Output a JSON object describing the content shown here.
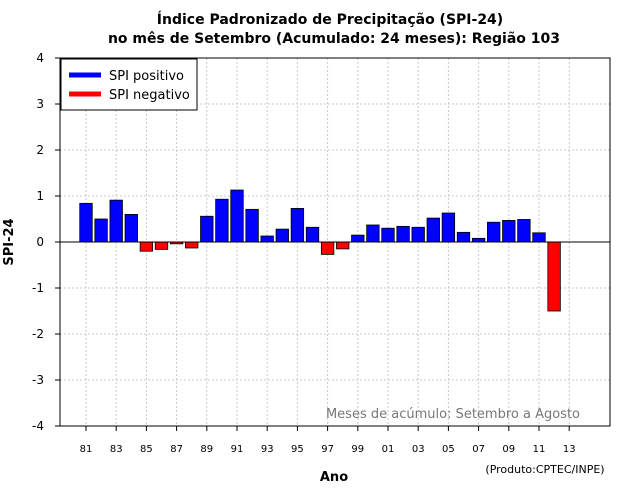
{
  "chart_data": {
    "type": "bar",
    "title_line1": "Índice Padronizado de Precipitação (SPI-24)",
    "title_line2": "no mês de Setembro (Acumulado: 24 meses): Região 103",
    "xlabel": "Ano",
    "ylabel": "SPI-24",
    "ylim": [
      -4,
      4
    ],
    "yticks": [
      "4",
      "3",
      "2",
      "1",
      "0",
      "-1",
      "-2",
      "-3",
      "-4"
    ],
    "xtick_labels": [
      "81",
      "83",
      "85",
      "87",
      "89",
      "91",
      "93",
      "95",
      "97",
      "99",
      "01",
      "03",
      "05",
      "07",
      "09",
      "11",
      "13"
    ],
    "categories": [
      "1981",
      "1982",
      "1983",
      "1984",
      "1985",
      "1986",
      "1987",
      "1988",
      "1989",
      "1990",
      "1991",
      "1992",
      "1993",
      "1994",
      "1995",
      "1996",
      "1997",
      "1998",
      "1999",
      "2000",
      "2001",
      "2002",
      "2003",
      "2004",
      "2005",
      "2006",
      "2007",
      "2008",
      "2009",
      "2010",
      "2011",
      "2012"
    ],
    "values": [
      0.84,
      0.5,
      0.91,
      0.6,
      -0.2,
      -0.16,
      -0.04,
      -0.13,
      0.56,
      0.93,
      1.13,
      0.71,
      0.13,
      0.28,
      0.73,
      0.32,
      -0.27,
      -0.15,
      0.15,
      0.37,
      0.3,
      0.34,
      0.32,
      0.52,
      0.63,
      0.21,
      0.08,
      0.43,
      0.47,
      0.49,
      0.2,
      -1.5
    ],
    "grid": true,
    "legend": {
      "position": "top-left",
      "entries": [
        {
          "label": "SPI positivo",
          "color": "#0000ff"
        },
        {
          "label": "SPI negativo",
          "color": "#ff0000"
        }
      ]
    },
    "annotation": "Meses de acúmulo: Setembro a Agosto",
    "credit": "(Produto:CPTEC/INPE)",
    "colors": {
      "positive": "#0000ff",
      "negative": "#ff0000",
      "grid": "#c8c8c8"
    }
  }
}
